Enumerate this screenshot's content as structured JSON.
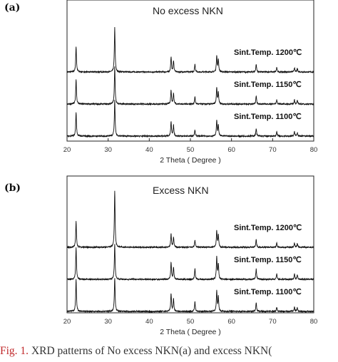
{
  "chart_data": [
    {
      "type": "line",
      "panel_label": "(a)",
      "title": "No excess NKN",
      "xlabel": "2 Theta ( Degree )",
      "ylabel": "",
      "xlim": [
        20,
        80
      ],
      "xticks": [
        20,
        30,
        40,
        50,
        60,
        70,
        80
      ],
      "grid": false,
      "series": [
        {
          "name": "Sint.Temp. 1200℃",
          "peaks": [
            [
              22.2,
              0.72
            ],
            [
              31.6,
              1.25
            ],
            [
              45.3,
              0.42
            ],
            [
              45.9,
              0.32
            ],
            [
              51.1,
              0.22
            ],
            [
              56.4,
              0.46
            ],
            [
              56.8,
              0.35
            ],
            [
              66.0,
              0.22
            ],
            [
              71.0,
              0.12
            ],
            [
              75.3,
              0.12
            ],
            [
              76.0,
              0.1
            ]
          ]
        },
        {
          "name": "Sint.Temp. 1150℃",
          "peaks": [
            [
              22.2,
              0.7
            ],
            [
              31.6,
              1.05
            ],
            [
              45.3,
              0.4
            ],
            [
              45.9,
              0.3
            ],
            [
              51.1,
              0.2
            ],
            [
              56.4,
              0.45
            ],
            [
              56.8,
              0.32
            ],
            [
              66.0,
              0.22
            ],
            [
              71.0,
              0.12
            ],
            [
              75.3,
              0.12
            ],
            [
              76.0,
              0.1
            ]
          ]
        },
        {
          "name": "Sint.Temp. 1100℃",
          "peaks": [
            [
              22.2,
              0.68
            ],
            [
              31.6,
              1.0
            ],
            [
              45.3,
              0.4
            ],
            [
              45.9,
              0.3
            ],
            [
              51.1,
              0.18
            ],
            [
              56.4,
              0.44
            ],
            [
              56.8,
              0.3
            ],
            [
              66.0,
              0.22
            ],
            [
              71.0,
              0.12
            ],
            [
              75.3,
              0.12
            ],
            [
              76.0,
              0.1
            ]
          ]
        }
      ]
    },
    {
      "type": "line",
      "panel_label": "(b)",
      "title": "Excess NKN",
      "xlabel": "2 Theta ( Degree )",
      "ylabel": "",
      "xlim": [
        20,
        80
      ],
      "xticks": [
        20,
        30,
        40,
        50,
        60,
        70,
        80
      ],
      "grid": false,
      "series": [
        {
          "name": "Sint.Temp. 1200℃",
          "peaks": [
            [
              22.2,
              0.72
            ],
            [
              31.6,
              1.6
            ],
            [
              45.3,
              0.38
            ],
            [
              45.9,
              0.28
            ],
            [
              51.1,
              0.2
            ],
            [
              56.4,
              0.46
            ],
            [
              56.8,
              0.34
            ],
            [
              66.0,
              0.22
            ],
            [
              71.0,
              0.12
            ],
            [
              75.3,
              0.12
            ],
            [
              76.0,
              0.1
            ]
          ]
        },
        {
          "name": "Sint.Temp. 1150℃",
          "peaks": [
            [
              22.2,
              0.9
            ],
            [
              31.6,
              1.0
            ],
            [
              45.3,
              0.48
            ],
            [
              45.9,
              0.34
            ],
            [
              51.1,
              0.3
            ],
            [
              56.4,
              0.62
            ],
            [
              56.8,
              0.42
            ],
            [
              66.0,
              0.3
            ],
            [
              71.0,
              0.15
            ],
            [
              75.3,
              0.15
            ],
            [
              76.0,
              0.12
            ]
          ]
        },
        {
          "name": "Sint.Temp. 1100℃",
          "peaks": [
            [
              22.2,
              0.9
            ],
            [
              31.6,
              0.95
            ],
            [
              45.3,
              0.5
            ],
            [
              45.9,
              0.36
            ],
            [
              51.1,
              0.28
            ],
            [
              56.4,
              0.56
            ],
            [
              56.8,
              0.4
            ],
            [
              66.0,
              0.24
            ],
            [
              71.0,
              0.12
            ],
            [
              75.3,
              0.12
            ],
            [
              76.0,
              0.1
            ]
          ]
        }
      ]
    }
  ],
  "caption": {
    "number": "Fig. 1.",
    "text": " XRD patterns of No excess NKN(a) and excess NKN("
  }
}
